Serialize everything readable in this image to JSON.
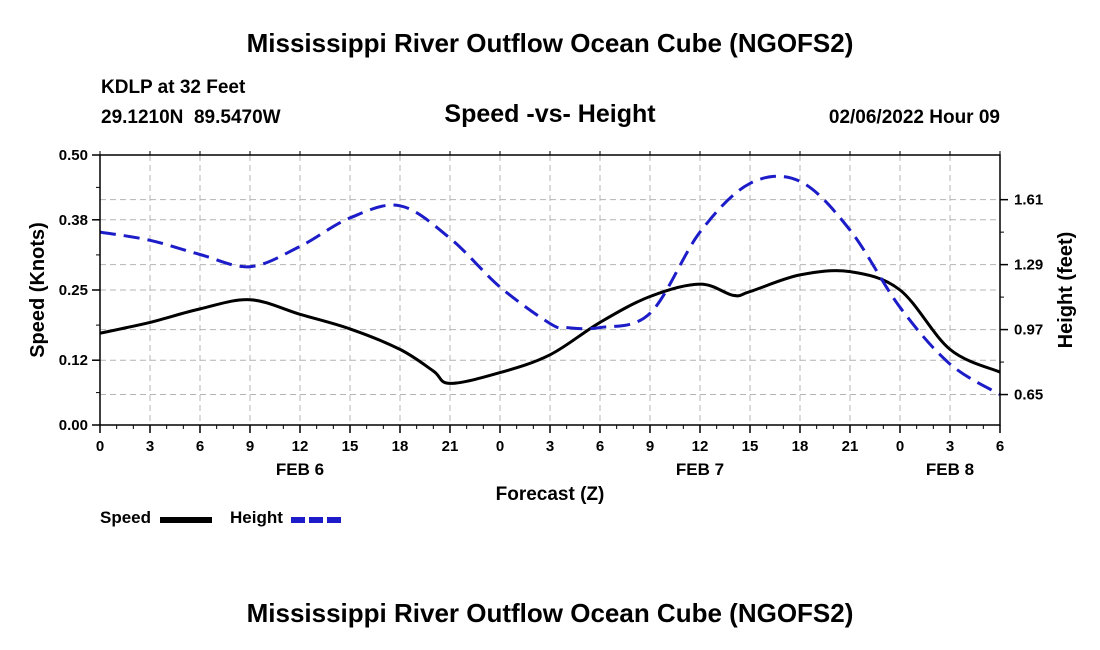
{
  "header": {
    "title": "Mississippi River Outflow Ocean Cube (NGOFS2)",
    "station": "KDLP at 32 Feet",
    "coords": "29.1210N  89.5470W",
    "subtitle": "Speed -vs- Height",
    "datetime": "02/06/2022 Hour 09"
  },
  "footer": {
    "title": "Mississippi River Outflow Ocean Cube (NGOFS2)"
  },
  "legend": {
    "speed_label": "Speed",
    "height_label": "Height"
  },
  "colors": {
    "speed": "#000000",
    "height": "#1c1cc8",
    "grid": "#b4b4b4"
  },
  "chart_data": {
    "type": "line",
    "title": "Speed -vs- Height",
    "xlabel": "Forecast (Z)",
    "ylabel": "Speed (Knots)",
    "y2label": "Height (feet)",
    "xlim": [
      0,
      54
    ],
    "ylim": [
      0,
      0.5
    ],
    "y2lim": [
      0.5,
      1.83
    ],
    "x_ticks": [
      0,
      3,
      6,
      9,
      12,
      15,
      18,
      21,
      24,
      27,
      30,
      33,
      36,
      39,
      42,
      45,
      48,
      51,
      54
    ],
    "x_tick_labels": [
      "0",
      "3",
      "6",
      "9",
      "12",
      "15",
      "18",
      "21",
      "0",
      "3",
      "6",
      "9",
      "12",
      "15",
      "18",
      "21",
      "0",
      "3",
      "6"
    ],
    "date_labels": [
      {
        "x": 12,
        "label": "FEB 6"
      },
      {
        "x": 36,
        "label": "FEB 7"
      },
      {
        "x": 51,
        "label": "FEB 8"
      }
    ],
    "y_ticks": [
      0.0,
      0.12,
      0.25,
      0.38,
      0.5
    ],
    "y_tick_labels": [
      "0.00",
      "0.12",
      "0.25",
      "0.38",
      "0.50"
    ],
    "y2_ticks": [
      0.65,
      0.97,
      1.29,
      1.61
    ],
    "y2_tick_labels": [
      "0.65",
      "0.97",
      "1.29",
      "1.61"
    ],
    "series": [
      {
        "name": "Speed",
        "axis": "left",
        "style": "solid",
        "x": [
          0,
          3,
          6,
          9,
          12,
          15,
          18,
          20,
          21,
          24,
          27,
          30,
          33,
          36,
          38,
          39,
          42,
          45,
          48,
          51,
          54
        ],
        "values": [
          0.17,
          0.19,
          0.215,
          0.232,
          0.205,
          0.178,
          0.14,
          0.1,
          0.077,
          0.097,
          0.13,
          0.19,
          0.238,
          0.261,
          0.24,
          0.247,
          0.278,
          0.284,
          0.25,
          0.14,
          0.098
        ]
      },
      {
        "name": "Height",
        "axis": "right",
        "style": "dashed",
        "x": [
          0,
          3,
          6,
          9,
          12,
          15,
          18,
          21,
          24,
          27,
          28,
          30,
          33,
          36,
          39,
          42,
          45,
          48,
          51,
          54
        ],
        "values": [
          1.45,
          1.41,
          1.34,
          1.28,
          1.38,
          1.52,
          1.58,
          1.42,
          1.18,
          1.0,
          0.98,
          0.98,
          1.05,
          1.45,
          1.69,
          1.7,
          1.46,
          1.08,
          0.8,
          0.65
        ]
      }
    ]
  }
}
